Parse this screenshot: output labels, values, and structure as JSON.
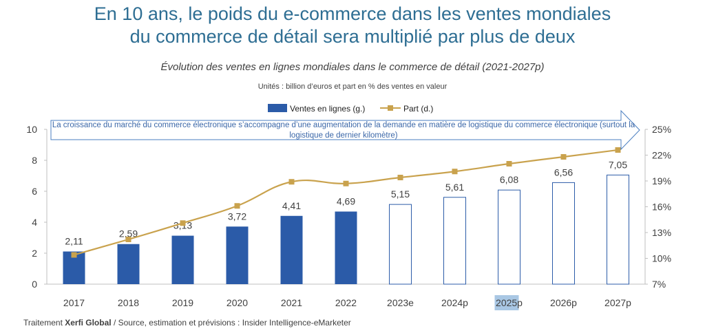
{
  "header": {
    "title_line1": "En 10 ans, le poids du e-commerce dans les ventes mondiales",
    "title_line2": "du commerce de détail sera multiplié par plus de deux",
    "subtitle": "Évolution des ventes en lignes mondiales dans le commerce de détail (2021-2027p)",
    "units": "Unités : billion d’euros et part en % des ventes en valeur"
  },
  "annotation": "La croissance du marché du commerce électronique s’accompagne d’une augmentation de la demande en matière de logistique du commerce électronique (surtout la logistique de dernier kilomètre)",
  "source": {
    "prefix": "Traitement",
    "brand": "Xerfi Global",
    "text": "/ Source, estimation et prévisions : Insider Intelligence-eMarketer"
  },
  "colors": {
    "bar": "#2b5ba8",
    "line": "#c9a24d",
    "title": "#2e6e93",
    "highlight": "#a9c7e4"
  },
  "chart_data": {
    "type": "bar+line",
    "categories": [
      "2017",
      "2018",
      "2019",
      "2020",
      "2021",
      "2022",
      "2023e",
      "2024p",
      "2025p",
      "2026p",
      "2027p"
    ],
    "series": [
      {
        "name": "Ventes en lignes (g.)",
        "type": "bar",
        "axis": "left",
        "values": [
          2.11,
          2.59,
          3.13,
          3.72,
          4.41,
          4.69,
          5.15,
          5.61,
          6.08,
          6.56,
          7.05
        ],
        "labels": [
          "2,11",
          "2,59",
          "3,13",
          "3,72",
          "4,41",
          "4,69",
          "5,15",
          "5,61",
          "6,08",
          "6,56",
          "7,05"
        ],
        "filled": [
          true,
          true,
          true,
          true,
          true,
          true,
          false,
          false,
          false,
          false,
          false
        ]
      },
      {
        "name": "Part (d.)",
        "type": "line",
        "axis": "right",
        "values": [
          10.4,
          12.2,
          14.1,
          16.1,
          18.9,
          18.7,
          19.4,
          20.1,
          21.0,
          21.8,
          22.6
        ]
      }
    ],
    "y_left": {
      "min": 0,
      "max": 10,
      "ticks": [
        "0",
        "2",
        "4",
        "6",
        "8",
        "10"
      ]
    },
    "y_right": {
      "min": 7,
      "max": 25,
      "ticks": [
        "7%",
        "10%",
        "13%",
        "16%",
        "19%",
        "22%",
        "25%"
      ]
    },
    "legend_position": "top-center",
    "highlighted_category": "2025p"
  }
}
